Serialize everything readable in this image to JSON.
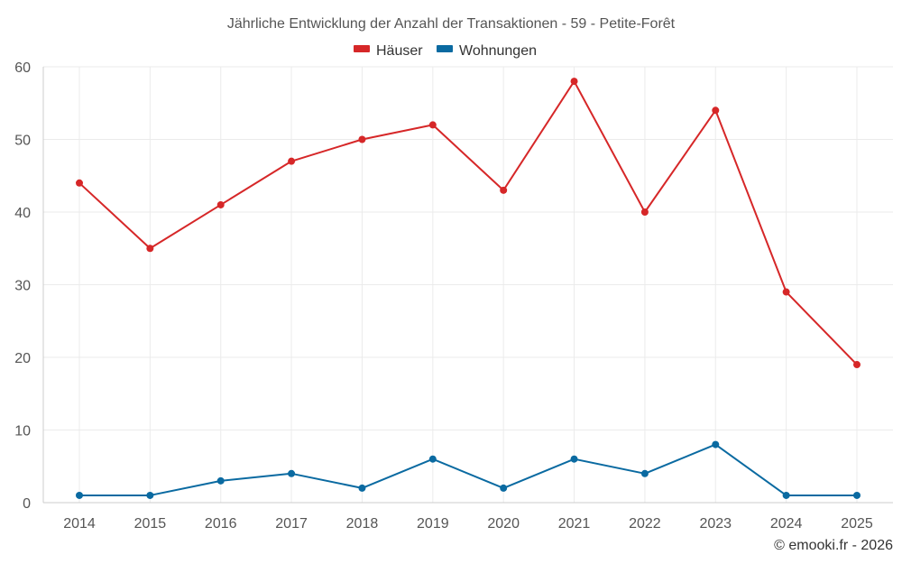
{
  "chart_data": {
    "type": "line",
    "title": "Jährliche Entwicklung der Anzahl der Transaktionen - 59 - Petite-Forêt",
    "categories": [
      "2014",
      "2015",
      "2016",
      "2017",
      "2018",
      "2019",
      "2020",
      "2021",
      "2022",
      "2023",
      "2024",
      "2025"
    ],
    "series": [
      {
        "name": "Häuser",
        "color": "#d62728",
        "values": [
          44,
          35,
          41,
          47,
          50,
          52,
          43,
          58,
          40,
          54,
          29,
          19
        ]
      },
      {
        "name": "Wohnungen",
        "color": "#0a6aa1",
        "values": [
          1,
          1,
          3,
          4,
          2,
          6,
          2,
          6,
          4,
          8,
          1,
          1
        ]
      }
    ],
    "ylim": [
      0,
      60
    ],
    "yticks": [
      0,
      10,
      20,
      30,
      40,
      50,
      60
    ],
    "xlabel": "",
    "ylabel": "",
    "grid": true,
    "legend": "top-center"
  },
  "credit": "© emooki.fr - 2026"
}
